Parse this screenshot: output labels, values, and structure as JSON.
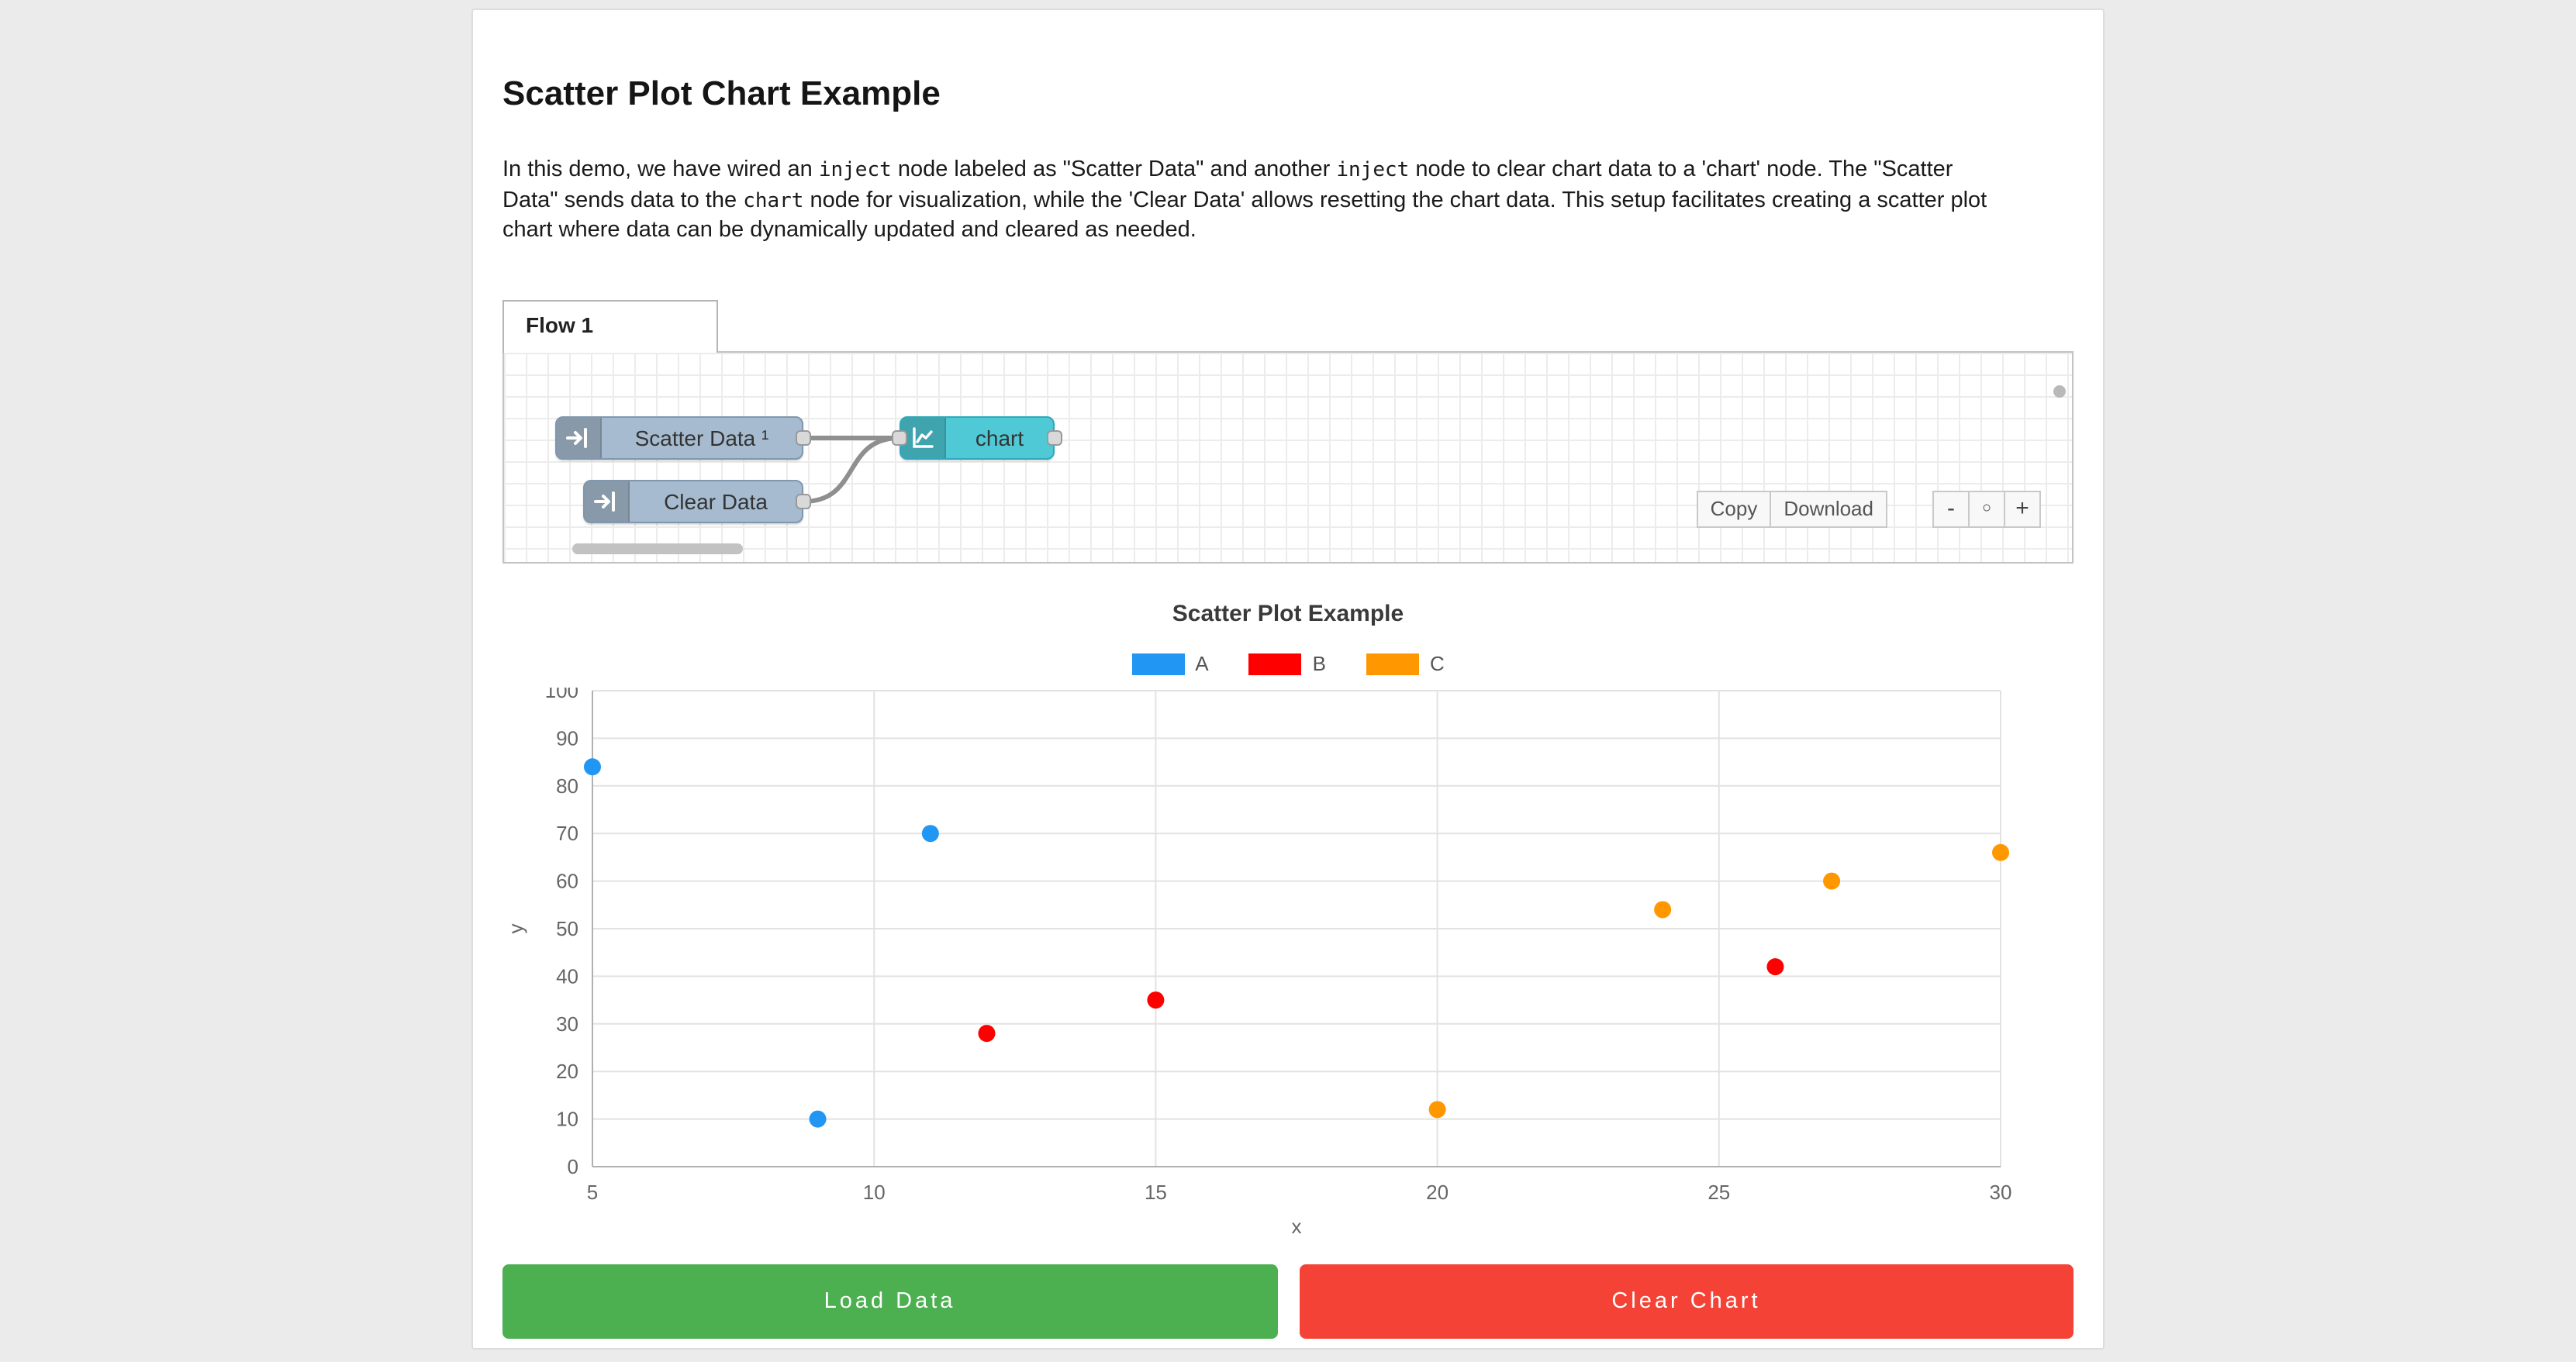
{
  "page": {
    "title": "Scatter Plot Chart Example"
  },
  "intro": {
    "segments": [
      {
        "t": "text",
        "v": "In this demo, we have wired an "
      },
      {
        "t": "code",
        "v": "inject"
      },
      {
        "t": "text",
        "v": " node labeled as \"Scatter Data\" and another "
      },
      {
        "t": "code",
        "v": "inject"
      },
      {
        "t": "text",
        "v": " node to clear chart data to a 'chart' node. The \"Scatter Data\" sends data to the "
      },
      {
        "t": "code",
        "v": "chart"
      },
      {
        "t": "text",
        "v": " node for visualization, while the 'Clear Data' allows resetting the chart data. This setup facilitates creating a scatter plot chart where data can be dynamically updated and cleared as needed."
      }
    ]
  },
  "flow": {
    "tab_label": "Flow 1",
    "nodes": [
      {
        "label": "Scatter Data ¹",
        "type": "inject"
      },
      {
        "label": "Clear Data",
        "type": "inject"
      },
      {
        "label": "chart",
        "type": "chart"
      }
    ],
    "toolbar": {
      "copy_label": "Copy",
      "download_label": "Download"
    },
    "zoom": {
      "minus": "-",
      "reset": "○",
      "plus": "+"
    }
  },
  "chart_data": {
    "type": "scatter",
    "title": "Scatter Plot Example",
    "xlabel": "x",
    "ylabel": "y",
    "xlim": [
      5,
      30
    ],
    "ylim": [
      0,
      100
    ],
    "xticks": [
      5,
      10,
      15,
      20,
      25,
      30
    ],
    "yticks": [
      0,
      10,
      20,
      30,
      40,
      50,
      60,
      70,
      80,
      90,
      100
    ],
    "grid": true,
    "legend_position": "top",
    "series": [
      {
        "name": "A",
        "color": "#2196f3",
        "points": [
          [
            5,
            84
          ],
          [
            9,
            10
          ],
          [
            11,
            70
          ]
        ]
      },
      {
        "name": "B",
        "color": "#ff0000",
        "points": [
          [
            12,
            28
          ],
          [
            15,
            35
          ],
          [
            26,
            42
          ]
        ]
      },
      {
        "name": "C",
        "color": "#ff9800",
        "points": [
          [
            20,
            12
          ],
          [
            24,
            54
          ],
          [
            27,
            60
          ],
          [
            30,
            66
          ]
        ]
      }
    ]
  },
  "actions": {
    "load_label": "Load Data",
    "clear_label": "Clear Chart"
  },
  "colors": {
    "page_bg": "#ebebeb",
    "card_bg": "#ffffff",
    "green": "#4caf50",
    "red": "#f44336",
    "inject_node": "#a6bbcf",
    "chart_node": "#4fc9d6",
    "wire": "#8f8f8f"
  }
}
